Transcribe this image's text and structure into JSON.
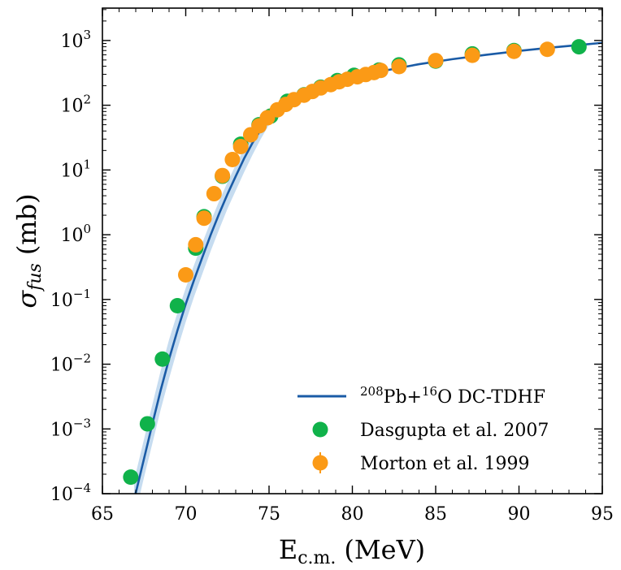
{
  "chart_data": {
    "type": "scatter",
    "xlabel": "E",
    "xlabel_sub": "c.m.",
    "xlabel_unit": "(MeV)",
    "ylabel": "σ",
    "ylabel_sub": "fus",
    "ylabel_unit": "(mb)",
    "xlim": [
      65,
      95
    ],
    "ylim_log10": [
      -4,
      3.5
    ],
    "yscale": "log",
    "x_ticks": [
      65,
      70,
      75,
      80,
      85,
      90,
      95
    ],
    "y_tick_exponents": [
      -4,
      -3,
      -2,
      -1,
      0,
      1,
      2,
      3
    ],
    "grid": false,
    "legend_position": "lower-right",
    "series": [
      {
        "name_parts": {
          "sup1": "208",
          "el1": "Pb+",
          "sup2": "16",
          "el2": "O DC-TDHF"
        },
        "kind": "line",
        "color": "#1a5ba6",
        "band_color": "#c6dcf0",
        "x": [
          66.9,
          67.5,
          68.0,
          68.5,
          69.0,
          69.5,
          70.0,
          70.5,
          71.0,
          71.5,
          72.0,
          72.5,
          73.0,
          73.5,
          74.0,
          74.5,
          75.0,
          75.5,
          76.0,
          77.0,
          78.0,
          79.0,
          80.0,
          81.0,
          82.0,
          84.0,
          86.0,
          88.0,
          90.0,
          92.0,
          94.0,
          95.0
        ],
        "y": [
          8e-05,
          0.00035,
          0.0012,
          0.004,
          0.012,
          0.033,
          0.085,
          0.2,
          0.45,
          1.0,
          2.1,
          4.2,
          8.0,
          15,
          26,
          42,
          65,
          90,
          110,
          145,
          185,
          225,
          265,
          305,
          345,
          430,
          515,
          600,
          690,
          780,
          870,
          920
        ],
        "band_lower": [
          4e-05,
          0.00018,
          0.0006,
          0.002,
          0.006,
          0.017,
          0.045,
          0.11,
          0.25,
          0.56,
          1.2,
          2.5,
          4.8,
          9.2,
          17,
          30,
          50,
          78,
          104,
          142,
          182,
          222,
          262,
          302,
          342,
          427,
          512,
          597,
          687,
          777,
          867,
          917
        ],
        "band_upper": [
          0.00016,
          0.0007,
          0.0024,
          0.008,
          0.024,
          0.062,
          0.15,
          0.34,
          0.75,
          1.6,
          3.3,
          6.4,
          12,
          21,
          35,
          54,
          80,
          102,
          116,
          148,
          188,
          228,
          268,
          308,
          348,
          433,
          518,
          603,
          693,
          783,
          873,
          923
        ]
      },
      {
        "name": "Dasgupta et al. 2007",
        "kind": "scatter",
        "color": "#10b24a",
        "x": [
          66.7,
          67.7,
          68.6,
          69.5,
          70.6,
          71.1,
          72.2,
          73.3,
          74.4,
          75.1,
          76.1,
          77.1,
          78.1,
          79.1,
          80.1,
          81.6,
          82.8,
          85.0,
          87.2,
          89.7,
          93.6
        ],
        "y": [
          0.00018,
          0.0012,
          0.012,
          0.08,
          0.62,
          1.9,
          8.0,
          25,
          50,
          68,
          115,
          145,
          190,
          240,
          290,
          350,
          420,
          480,
          620,
          700,
          800
        ]
      },
      {
        "name": "Morton et al. 1999",
        "kind": "scatter",
        "color": "#fb9a16",
        "x": [
          70.0,
          70.6,
          71.1,
          71.7,
          72.2,
          72.8,
          73.3,
          73.9,
          74.4,
          74.9,
          75.5,
          76.0,
          76.5,
          77.1,
          77.6,
          78.1,
          78.7,
          79.2,
          79.7,
          80.3,
          80.8,
          81.3,
          81.7,
          82.8,
          85.0,
          87.2,
          89.7,
          91.7
        ],
        "y": [
          0.24,
          0.7,
          1.8,
          4.3,
          8.2,
          14.5,
          23,
          35,
          48,
          64,
          85,
          103,
          122,
          143,
          163,
          185,
          208,
          230,
          252,
          275,
          298,
          320,
          345,
          395,
          490,
          590,
          680,
          730
        ]
      }
    ]
  }
}
